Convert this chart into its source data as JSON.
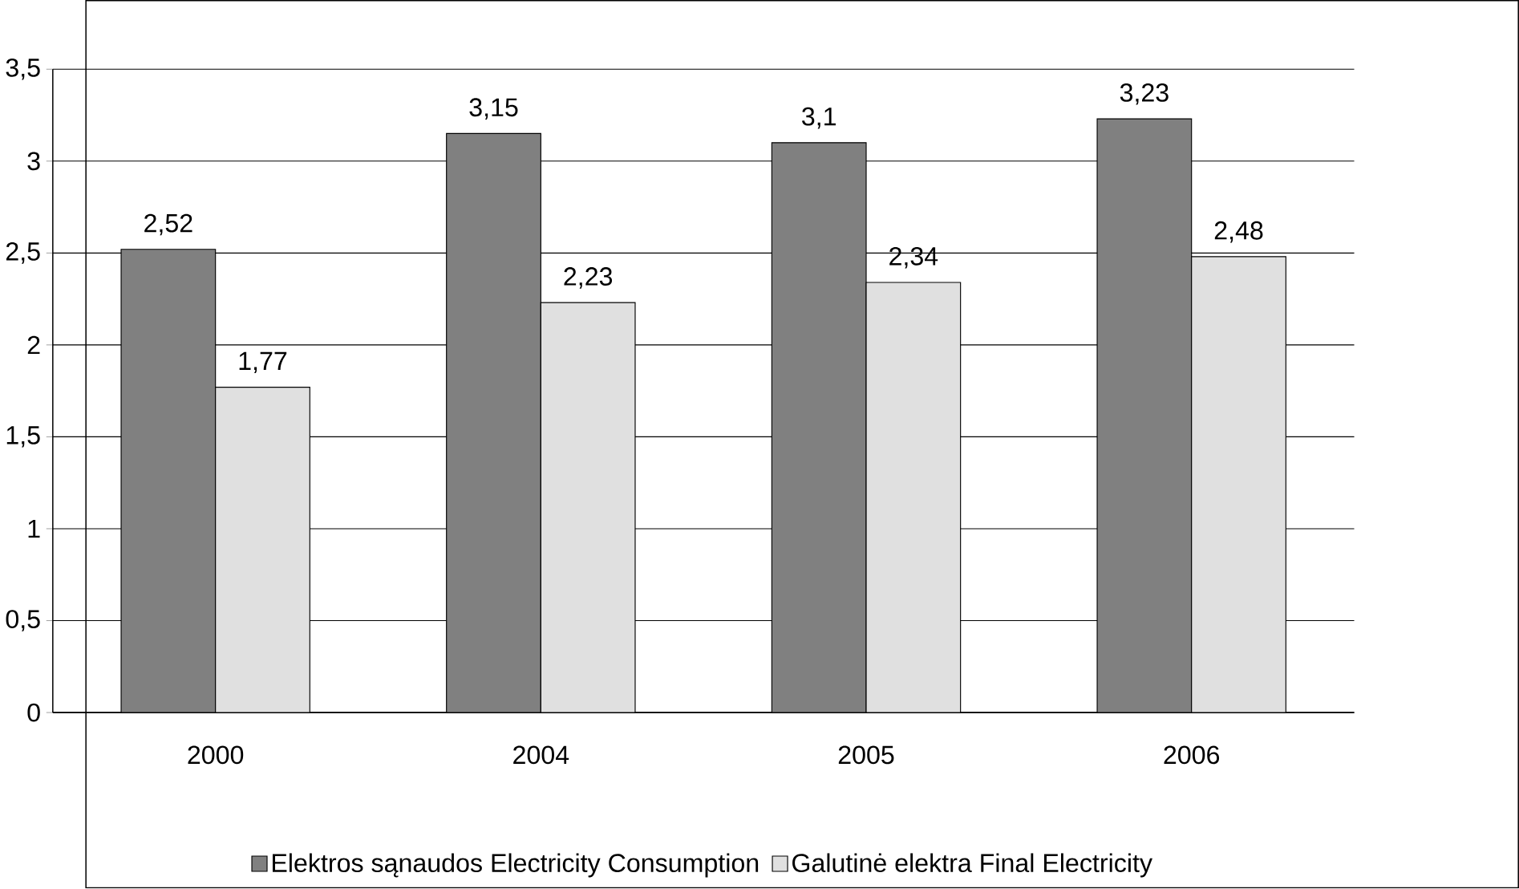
{
  "chart_data": {
    "type": "bar",
    "categories": [
      "2000",
      "2004",
      "2005",
      "2006"
    ],
    "series": [
      {
        "name": "Elektros sąnaudos  Electricity  Consumption",
        "color": "#808080",
        "values": [
          2.52,
          3.15,
          3.1,
          3.23
        ],
        "value_labels": [
          "2,52",
          "3,15",
          "3,1",
          "3,23"
        ]
      },
      {
        "name": "Galutinė elektra   Final Electricity",
        "color": "#e0e0e0",
        "values": [
          1.77,
          2.23,
          2.34,
          2.48
        ],
        "value_labels": [
          "1,77",
          "2,23",
          "2,34",
          "2,48"
        ]
      }
    ],
    "ylim": [
      0,
      3.5
    ],
    "yticks": [
      0,
      {
        "value": 0.5,
        "label": "0,5"
      },
      1,
      {
        "value": 1.5,
        "label": "1,5"
      },
      2,
      {
        "value": 2.5,
        "label": "2,5"
      },
      3,
      {
        "value": 3.5,
        "label": "3,5"
      }
    ],
    "grid": "y",
    "legend": "bottom"
  }
}
